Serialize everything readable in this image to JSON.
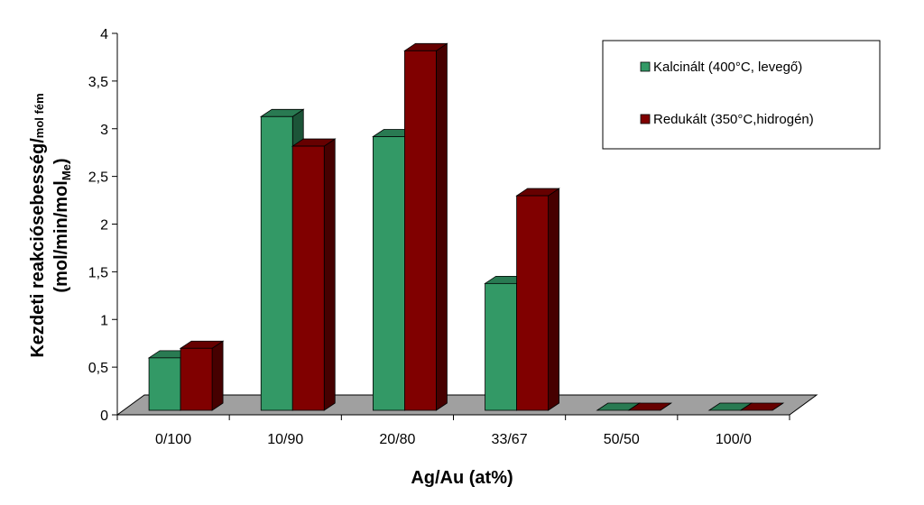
{
  "chart_data": {
    "type": "bar3d",
    "xlabel": "Ag/Au  (at%)",
    "ylabel": {
      "line1": "Kezdeti reakciósebesség/",
      "line1_small": "mol fém",
      "line2": "(mol/min/mol",
      "line2_sub": "Me",
      "line2_end": ")"
    },
    "categories": [
      "0/100",
      "10/90",
      "20/80",
      "33/67",
      "50/50",
      "100/0"
    ],
    "series": [
      {
        "name": "Kalcinált (400°C, levegő)",
        "color": "#339966",
        "values": [
          0.55,
          3.08,
          2.87,
          1.33,
          0,
          0
        ]
      },
      {
        "name": "Redukált (350°C,hidrogén)",
        "color": "#800000",
        "values": [
          0.65,
          2.77,
          3.77,
          2.25,
          0,
          0
        ]
      }
    ],
    "ylim": [
      0,
      4
    ],
    "yticks": [
      0,
      {
        "value": 0.5,
        "label": "0,5"
      },
      1,
      {
        "value": 1.5,
        "label": "1,5"
      },
      2,
      {
        "value": 2.5,
        "label": "2,5"
      },
      3,
      {
        "value": 3.5,
        "label": "3,5"
      },
      4
    ],
    "legend": "top-right"
  }
}
